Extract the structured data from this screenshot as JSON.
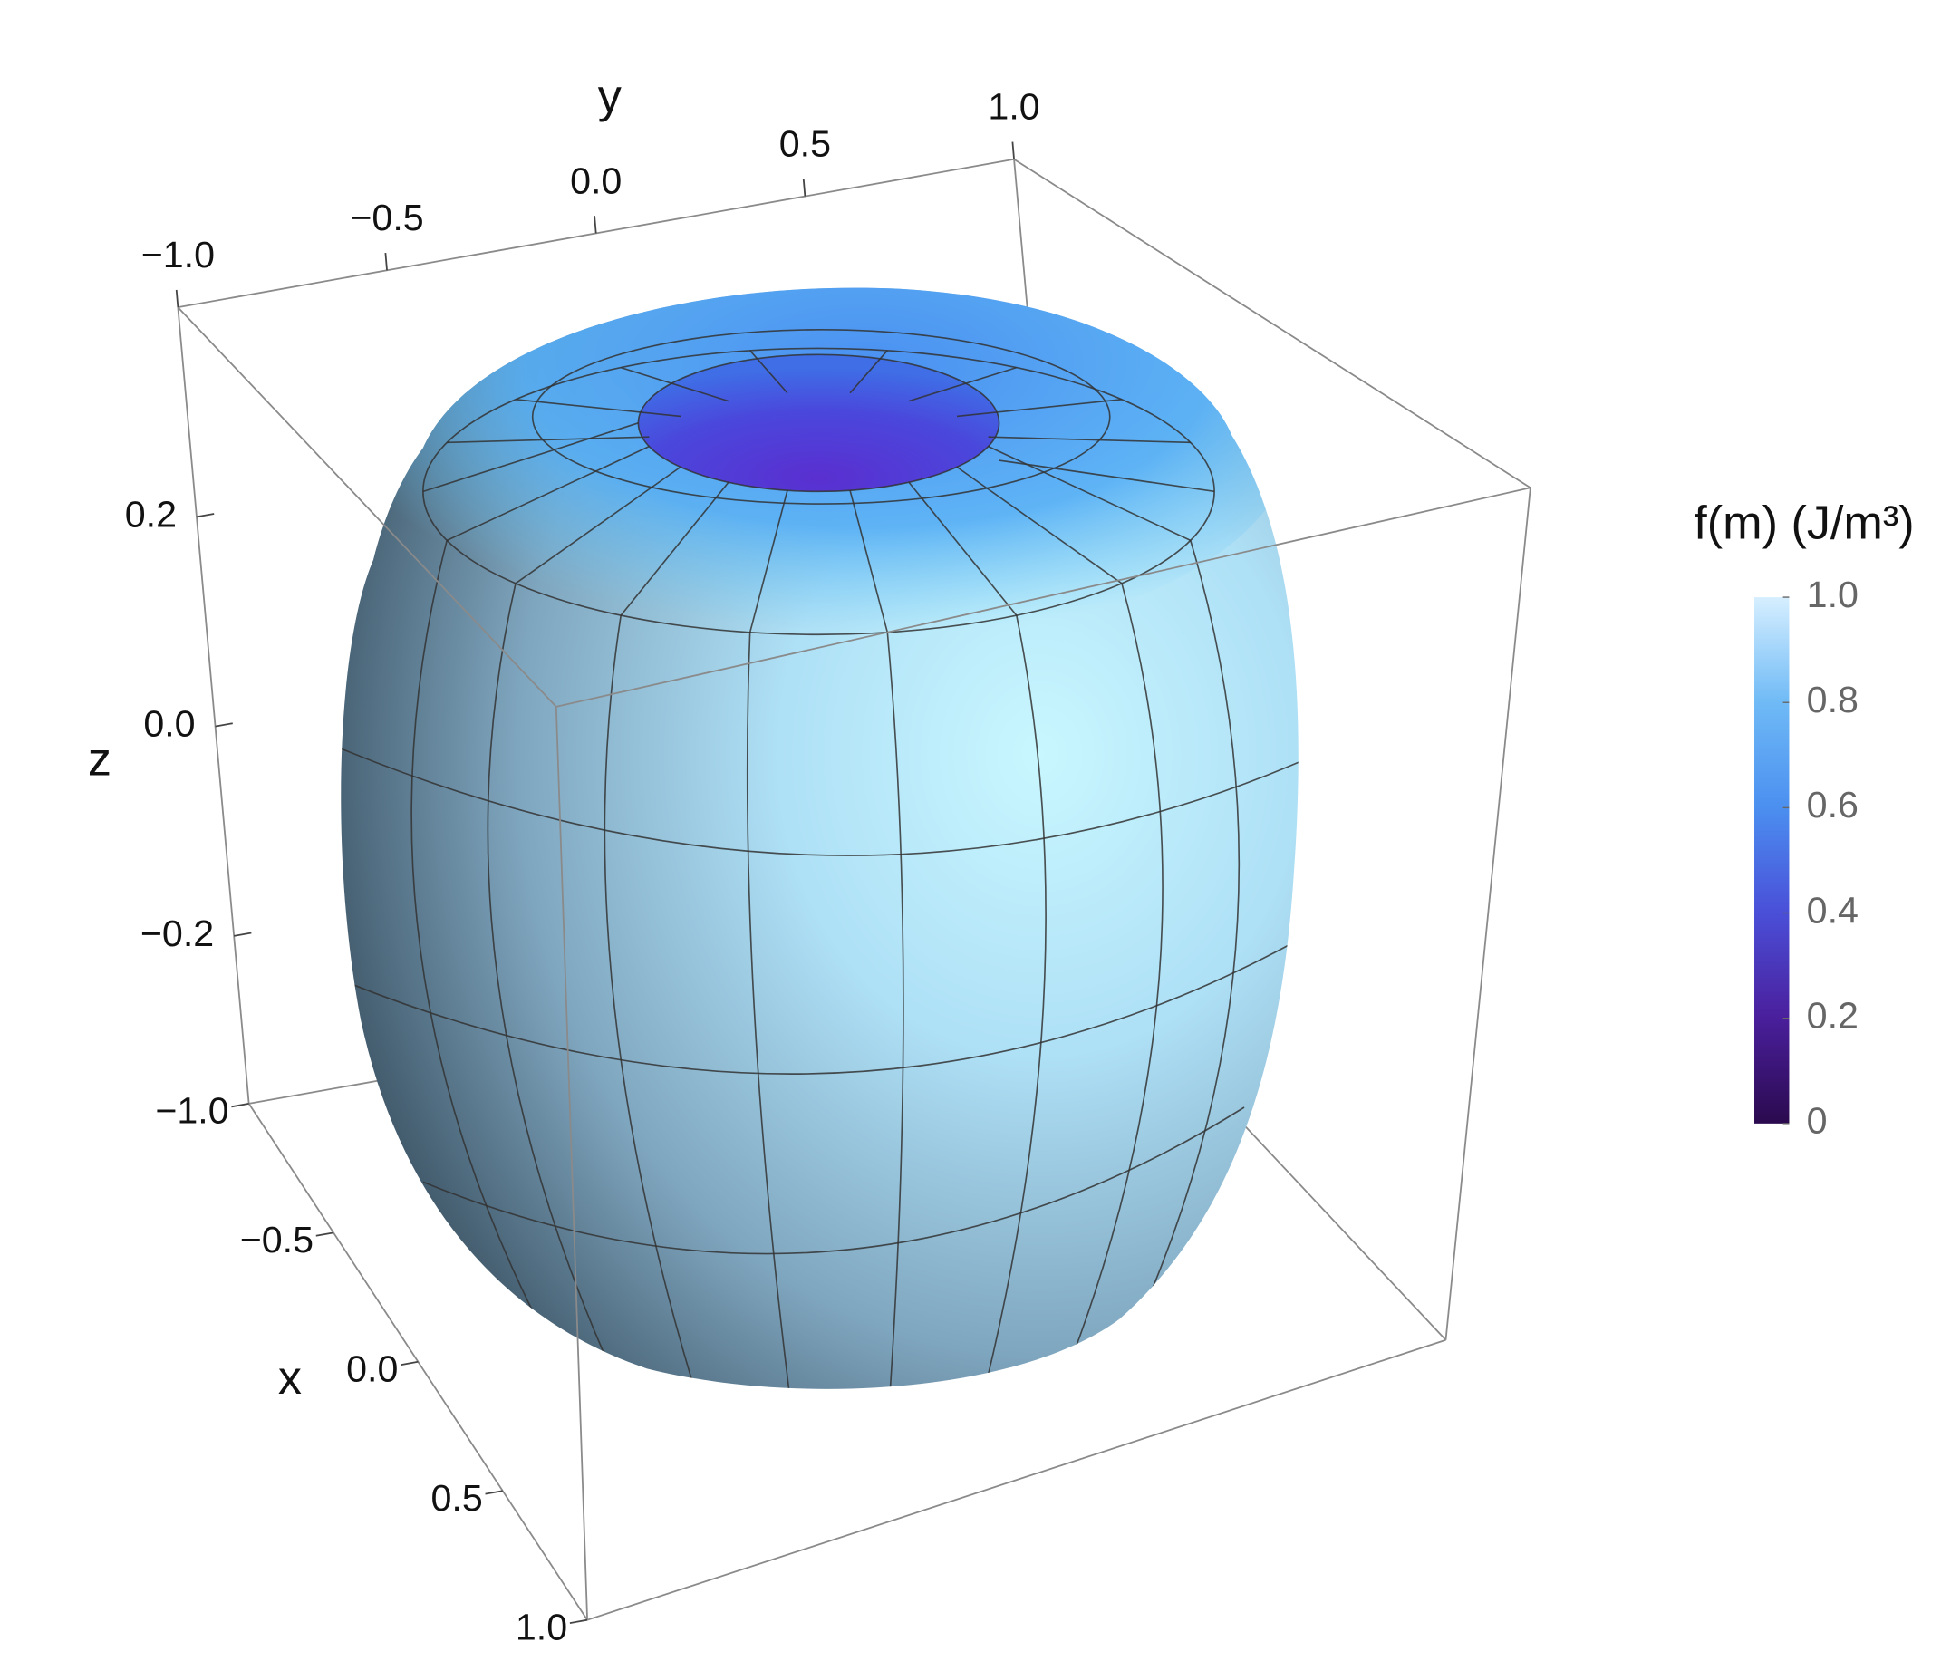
{
  "chart_data": {
    "type": "surface3d",
    "xlabel": "x",
    "ylabel": "y",
    "zlabel": "z",
    "xlim": [
      -1,
      1
    ],
    "ylim": [
      -1,
      1
    ],
    "zlim": [
      -0.36,
      0.4
    ],
    "xticks": [
      {
        "value": -1,
        "label": "−1.0"
      },
      {
        "value": -0.5,
        "label": "−0.5"
      },
      {
        "value": 0,
        "label": "0.0"
      },
      0.5,
      {
        "value": 1,
        "label": "1.0"
      }
    ],
    "yticks": [
      {
        "value": -1,
        "label": "−1.0"
      },
      {
        "value": -0.5,
        "label": "−0.5"
      },
      {
        "value": 0,
        "label": "0.0"
      },
      0.5,
      {
        "value": 1,
        "label": "1.0"
      }
    ],
    "zticks": [
      0.2,
      {
        "value": 0,
        "label": "0.0"
      },
      {
        "value": -0.2,
        "label": "−0.2"
      }
    ],
    "box_color": "#8a8a8a",
    "colorbar": {
      "title": "f(m) (J/m³)",
      "lim": [
        0,
        1
      ],
      "ticks": [
        {
          "value": 1,
          "label": "1.0"
        },
        0.8,
        0.6,
        0.4,
        0.2,
        0
      ],
      "colors": [
        "#2b0a4e",
        "#4a1f9c",
        "#4a4fd8",
        "#4b8ff0",
        "#6fbaf6",
        "#d6efff"
      ]
    }
  }
}
